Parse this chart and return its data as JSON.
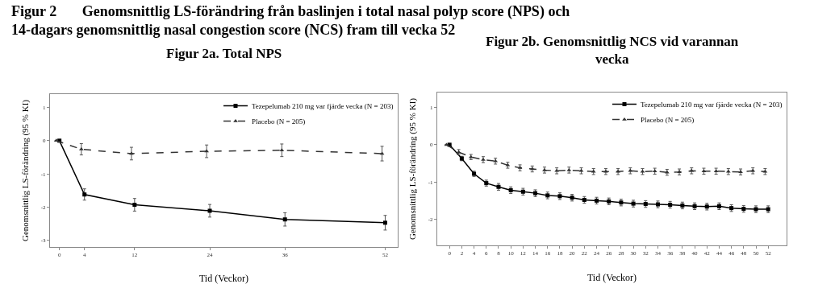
{
  "chart_data": [
    {
      "type": "line",
      "title": "Figur 2a. Total NPS",
      "annotations": [
        "Figur 2       Genomsnittlig LS-förändring från baslinjen i total nasal polyp score (NPS) och\n14-dagars genomsnittlig nasal congestion score (NCS) fram till vecka 52"
      ],
      "xlabel": "Tid (Veckor)",
      "ylabel": "Genomsnittlig LS-förändring (95 % KI)",
      "x": [
        0,
        4,
        12,
        24,
        36,
        52
      ],
      "xlim": [
        -1.5,
        54
      ],
      "xticks": [
        0,
        4,
        12,
        24,
        36,
        52
      ],
      "ylim": [
        -3.2,
        1.4
      ],
      "yticks": [
        -3,
        -2,
        -1,
        0,
        1
      ],
      "grid": false,
      "legend": "top right",
      "series": [
        {
          "name": "Tezepelumab 210 mg var fjärde vecka (N = 203)",
          "color": "#000000",
          "marker": "square",
          "line_style": "solid",
          "values": [
            0,
            -1.62,
            -1.93,
            -2.11,
            -2.37,
            -2.47
          ],
          "errors": [
            null,
            0.17,
            0.19,
            0.19,
            0.2,
            0.22
          ]
        },
        {
          "name": "Placebo (N = 205)",
          "color": "#333333",
          "marker": "triangle",
          "line_style": "dashed",
          "x": [
            -0.5,
            3.5,
            11.5,
            23.5,
            35.5,
            51.5
          ],
          "values": [
            0,
            -0.26,
            -0.39,
            -0.32,
            -0.29,
            -0.39
          ],
          "errors": [
            null,
            0.17,
            0.19,
            0.19,
            0.19,
            0.22
          ]
        }
      ]
    },
    {
      "type": "line",
      "title": "Figur 2b. Genomsnittlig NCS vid varannan\nvecka",
      "xlabel": "Tid (Veckor)",
      "ylabel": "Genomsnittlig LS-förändring (95 % KI)",
      "x": [
        0,
        2,
        4,
        6,
        8,
        10,
        12,
        14,
        16,
        18,
        20,
        22,
        24,
        26,
        28,
        30,
        32,
        34,
        36,
        38,
        40,
        42,
        44,
        46,
        48,
        50,
        52
      ],
      "xlim": [
        -2,
        55
      ],
      "xticks": [
        0,
        2,
        4,
        6,
        8,
        10,
        12,
        14,
        16,
        18,
        20,
        22,
        24,
        26,
        28,
        30,
        32,
        34,
        36,
        38,
        40,
        42,
        44,
        46,
        48,
        50,
        52
      ],
      "ylim": [
        -2.7,
        1.4
      ],
      "yticks": [
        -2,
        -1,
        0,
        1
      ],
      "grid": false,
      "legend": "top right",
      "series": [
        {
          "name": "Tezepelumab 210 mg var fjärde vecka (N = 203)",
          "color": "#000000",
          "marker": "square",
          "line_style": "solid",
          "values": [
            0,
            -0.37,
            -0.78,
            -1.03,
            -1.13,
            -1.22,
            -1.26,
            -1.3,
            -1.36,
            -1.38,
            -1.42,
            -1.48,
            -1.5,
            -1.52,
            -1.55,
            -1.58,
            -1.59,
            -1.6,
            -1.61,
            -1.63,
            -1.65,
            -1.66,
            -1.65,
            -1.7,
            -1.72,
            -1.73,
            -1.73
          ],
          "errors": [
            null,
            0.06,
            0.07,
            0.08,
            0.09,
            0.09,
            0.09,
            0.09,
            0.09,
            0.09,
            0.09,
            0.09,
            0.09,
            0.09,
            0.09,
            0.09,
            0.09,
            0.09,
            0.09,
            0.09,
            0.09,
            0.09,
            0.09,
            0.09,
            0.09,
            0.09,
            0.09
          ]
        },
        {
          "name": "Placebo (N = 205)",
          "color": "#333333",
          "marker": "triangle",
          "line_style": "dashed",
          "x": [
            -0.5,
            1.5,
            3.5,
            5.5,
            7.5,
            9.5,
            11.5,
            13.5,
            15.5,
            17.5,
            19.5,
            21.5,
            23.5,
            25.5,
            27.5,
            29.5,
            31.5,
            33.5,
            35.5,
            37.5,
            39.5,
            41.5,
            43.5,
            45.5,
            47.5,
            49.5,
            51.5
          ],
          "values": [
            0,
            -0.2,
            -0.33,
            -0.4,
            -0.44,
            -0.55,
            -0.62,
            -0.65,
            -0.68,
            -0.7,
            -0.68,
            -0.7,
            -0.72,
            -0.72,
            -0.72,
            -0.7,
            -0.72,
            -0.71,
            -0.74,
            -0.73,
            -0.7,
            -0.71,
            -0.71,
            -0.72,
            -0.73,
            -0.7,
            -0.72
          ],
          "errors": [
            null,
            0.07,
            0.07,
            0.08,
            0.08,
            0.08,
            0.08,
            0.08,
            0.08,
            0.08,
            0.08,
            0.08,
            0.08,
            0.08,
            0.08,
            0.08,
            0.08,
            0.08,
            0.08,
            0.08,
            0.08,
            0.08,
            0.08,
            0.08,
            0.08,
            0.08,
            0.08
          ]
        }
      ]
    }
  ]
}
